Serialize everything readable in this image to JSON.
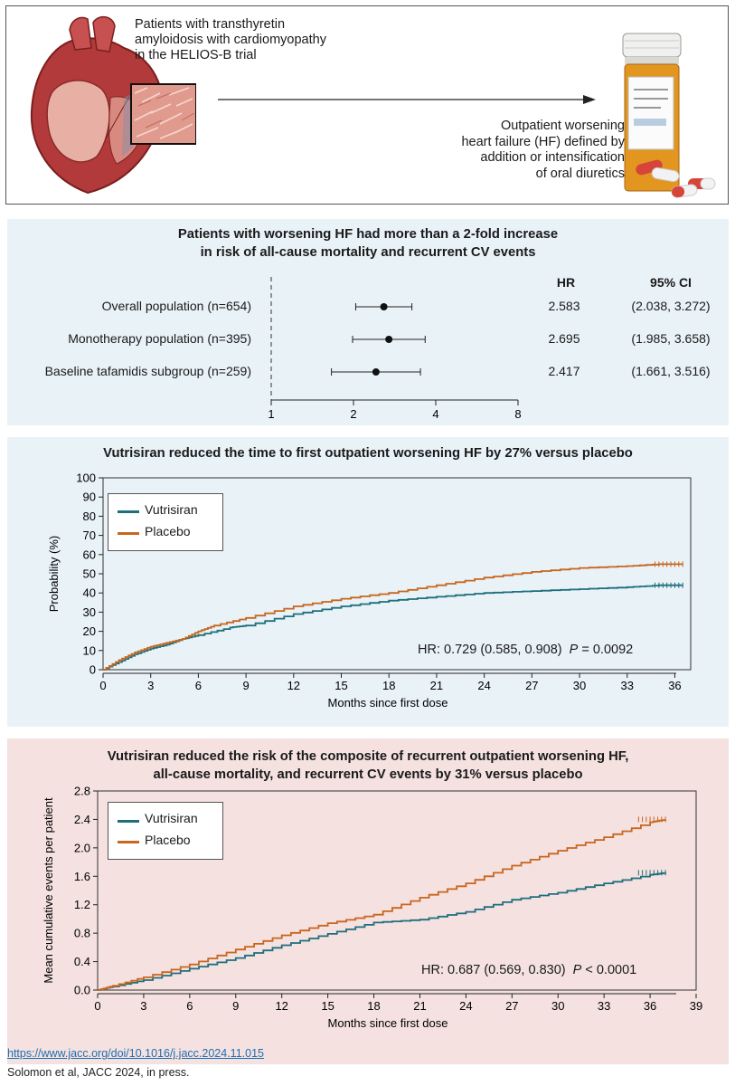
{
  "intro": {
    "population": [
      "Patients with transthyretin",
      "amyloidosis with cardiomyopathy",
      "in the HELIOS-B trial"
    ],
    "outcome": [
      "Outpatient worsening",
      "heart failure (HF) defined by",
      "addition or intensification",
      "of oral diuretics"
    ]
  },
  "forest": {
    "title": [
      "Patients with worsening HF had more than a 2-fold increase",
      "in risk of all-cause mortality and recurrent CV events"
    ],
    "hr_header": "HR",
    "ci_header": "95% CI",
    "rows": [
      {
        "label": "Overall population (n=654)",
        "hr_text": "2.583",
        "ci_text": "(2.038, 3.272)"
      },
      {
        "label": "Monotherapy population (n=395)",
        "hr_text": "2.695",
        "ci_text": "(1.985, 3.658)"
      },
      {
        "label": "Baseline tafamidis subgroup (n=259)",
        "hr_text": "2.417",
        "ci_text": "(1.661, 3.516)"
      }
    ]
  },
  "km": {
    "title": "Vutrisiran reduced the time to first outpatient worsening HF by 27% versus placebo",
    "hr_text": "HR: 0.729 (0.585, 0.908)",
    "p_label": "P",
    "p_text": " = 0.0092"
  },
  "mcf": {
    "title": [
      "Vutrisiran reduced the risk of the composite of recurrent outpatient worsening HF,",
      "all-cause mortality, and recurrent CV events by 31% versus placebo"
    ],
    "hr_text": "HR: 0.687 (0.569, 0.830)",
    "p_label": "P",
    "p_text": " < 0.0001"
  },
  "footer": {
    "link": "https://www.jacc.org/doi/10.1016/j.jacc.2024.11.015",
    "citation": "Solomon et al, JACC 2024, in press."
  },
  "colors": {
    "vutrisiran": "#1e6f7c",
    "placebo": "#c8661e",
    "arrow": "#222222"
  },
  "chart_data": [
    {
      "type": "forest",
      "xscale": "log",
      "xlim": [
        1,
        8
      ],
      "xticks": [
        1,
        2,
        4,
        8
      ],
      "reference_line": 1,
      "series": [
        {
          "name": "Overall population (n=654)",
          "hr": 2.583,
          "lower": 2.038,
          "upper": 3.272
        },
        {
          "name": "Monotherapy population (n=395)",
          "hr": 2.695,
          "lower": 1.985,
          "upper": 3.658
        },
        {
          "name": "Baseline tafamidis subgroup (n=259)",
          "hr": 2.417,
          "lower": 1.661,
          "upper": 3.516
        }
      ]
    },
    {
      "type": "line",
      "title": "Vutrisiran reduced the time to first outpatient worsening HF by 27% versus placebo",
      "xlabel": "Months since first dose",
      "ylabel": "Probability (%)",
      "xlim": [
        0,
        37
      ],
      "ylim": [
        0,
        100
      ],
      "xticks": [
        0,
        3,
        6,
        9,
        12,
        15,
        18,
        21,
        24,
        27,
        30,
        33,
        36
      ],
      "yticks": [
        0,
        10,
        20,
        30,
        40,
        50,
        60,
        70,
        80,
        90,
        100
      ],
      "legend": "top-left",
      "series": [
        {
          "name": "Vutrisiran",
          "x": [
            0,
            1,
            2,
            3,
            4,
            5,
            6,
            8,
            9,
            12,
            15,
            18,
            21,
            24,
            27,
            30,
            33,
            35,
            36.5
          ],
          "y": [
            0,
            4,
            8,
            11,
            13,
            16,
            18,
            22,
            23,
            29,
            33,
            36,
            38,
            40,
            41,
            42,
            43,
            44,
            44
          ]
        },
        {
          "name": "Placebo",
          "x": [
            0,
            1,
            2,
            3,
            4,
            5,
            6,
            7,
            9,
            12,
            15,
            18,
            21,
            24,
            27,
            30,
            33,
            35,
            36.5
          ],
          "y": [
            0,
            5,
            9,
            12,
            14,
            16,
            20,
            23,
            27,
            33,
            37,
            40,
            44,
            48,
            51,
            53,
            54,
            55,
            55
          ]
        }
      ],
      "annotation": "HR: 0.729 (0.585, 0.908) P = 0.0092"
    },
    {
      "type": "line",
      "title": "Vutrisiran reduced the risk of the composite of recurrent outpatient worsening HF, all-cause mortality, and recurrent CV events by 31% versus placebo",
      "xlabel": "Months since first dose",
      "ylabel": "Mean cumulative events per patient",
      "xlim": [
        0,
        39
      ],
      "ylim": [
        0,
        2.8
      ],
      "xticks": [
        0,
        3,
        6,
        9,
        12,
        15,
        18,
        21,
        24,
        27,
        30,
        33,
        36,
        39
      ],
      "yticks": [
        0.0,
        0.4,
        0.8,
        1.2,
        1.6,
        2.0,
        2.4,
        2.8
      ],
      "legend": "top-left",
      "series": [
        {
          "name": "Vutrisiran",
          "x": [
            0,
            1,
            3,
            6,
            9,
            12,
            15,
            18,
            21,
            24,
            27,
            30,
            33,
            36,
            37
          ],
          "y": [
            0,
            0.05,
            0.14,
            0.3,
            0.45,
            0.63,
            0.79,
            0.95,
            0.99,
            1.1,
            1.27,
            1.37,
            1.5,
            1.62,
            1.65
          ]
        },
        {
          "name": "Placebo",
          "x": [
            0,
            1,
            3,
            6,
            9,
            12,
            15,
            18,
            21,
            24,
            27,
            30,
            33,
            36,
            37
          ],
          "y": [
            0,
            0.06,
            0.18,
            0.36,
            0.57,
            0.77,
            0.94,
            1.06,
            1.3,
            1.5,
            1.75,
            1.96,
            2.15,
            2.36,
            2.4
          ]
        }
      ],
      "annotation": "HR: 0.687 (0.569, 0.830) P < 0.0001"
    }
  ]
}
